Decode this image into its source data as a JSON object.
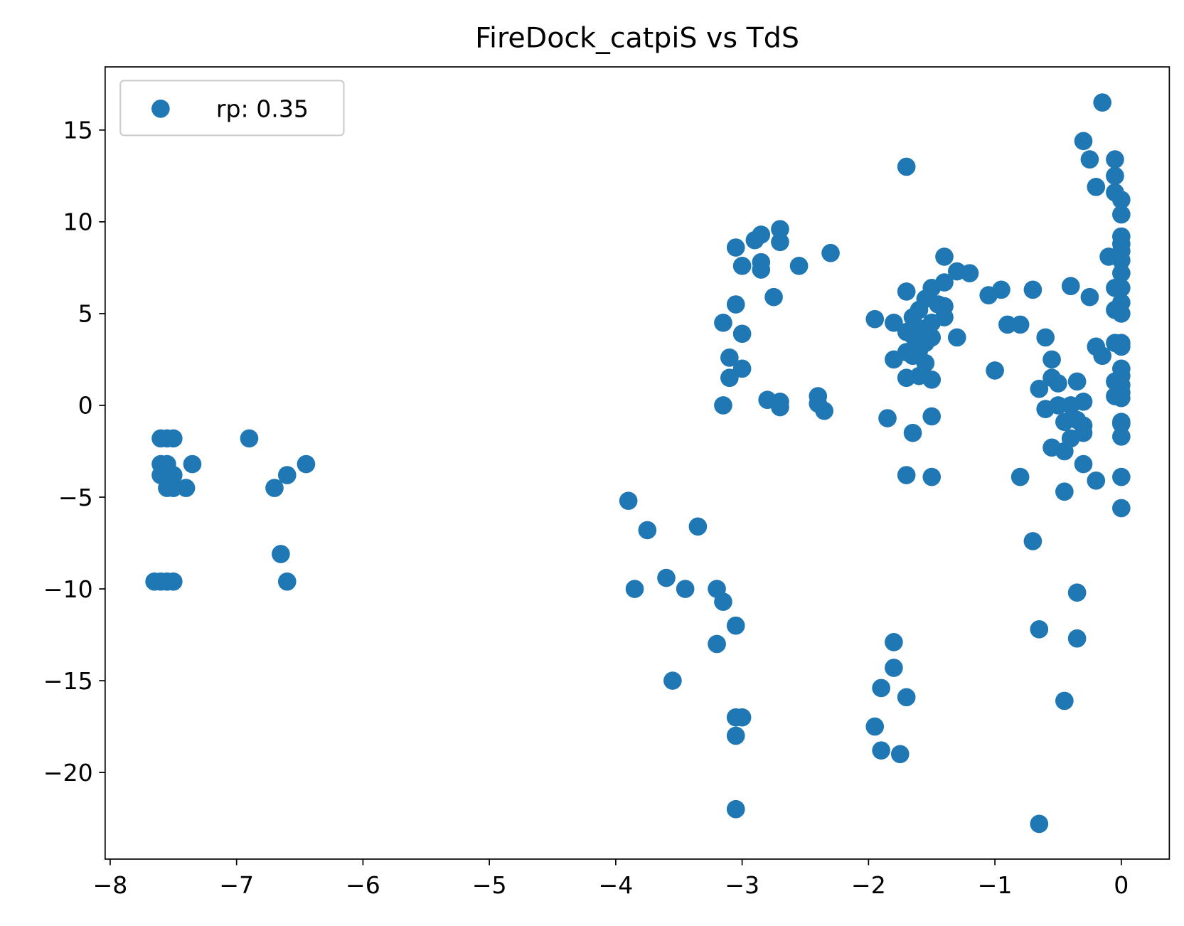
{
  "chart_data": {
    "type": "scatter",
    "title": "FireDock_catpiS vs TdS",
    "series": [
      {
        "name": "rp: 0.35",
        "color": "#1f77b4",
        "x": [
          -7.6,
          -7.55,
          -7.5,
          -7.6,
          -7.55,
          -7.6,
          -7.5,
          -7.55,
          -7.5,
          -7.4,
          -7.35,
          -7.65,
          -7.6,
          -7.55,
          -7.5,
          -6.9,
          -6.7,
          -6.6,
          -6.45,
          -6.65,
          -6.6,
          -3.9,
          -3.75,
          -3.35,
          -3.85,
          -3.6,
          -3.45,
          -3.2,
          -3.15,
          -3.05,
          -3.2,
          -3.55,
          -3.05,
          -3.0,
          -3.05,
          -3.05,
          -3.05,
          -2.9,
          -2.85,
          -2.7,
          -2.7,
          -3.0,
          -2.85,
          -2.85,
          -2.55,
          -2.3,
          -2.75,
          -3.05,
          -3.15,
          -3.0,
          -3.1,
          -3.0,
          -3.1,
          -3.15,
          -2.8,
          -2.7,
          -2.7,
          -2.4,
          -2.4,
          -2.35,
          -1.7,
          -1.95,
          -1.8,
          -1.7,
          -1.6,
          -1.65,
          -1.7,
          -1.65,
          -1.6,
          -1.55,
          -1.5,
          -1.45,
          -1.4,
          -1.4,
          -1.3,
          -1.2,
          -1.4,
          -1.4,
          -1.5,
          -1.5,
          -1.55,
          -1.6,
          -1.7,
          -1.8,
          -1.65,
          -1.55,
          -1.7,
          -1.6,
          -1.5,
          -1.3,
          -1.85,
          -1.65,
          -1.5,
          -1.7,
          -1.5,
          -1.8,
          -1.8,
          -1.9,
          -1.7,
          -1.95,
          -1.9,
          -1.75,
          -1.05,
          -0.95,
          -0.9,
          -0.8,
          -1.0,
          -0.7,
          -0.6,
          -0.55,
          -0.55,
          -0.5,
          -0.65,
          -0.6,
          -0.5,
          -0.4,
          -0.45,
          -0.35,
          -0.3,
          -0.3,
          -0.35,
          -0.3,
          -0.4,
          -0.45,
          -0.55,
          -0.3,
          -0.2,
          -0.45,
          -0.8,
          -0.7,
          -0.65,
          -0.35,
          -0.35,
          -0.45,
          -0.65,
          -0.4,
          -0.25,
          -0.2,
          -0.15,
          -0.15,
          -0.3,
          -0.25,
          -0.2,
          -0.05,
          -0.05,
          -0.05,
          0,
          0,
          0,
          0,
          -0.1,
          0,
          0,
          0,
          -0.05,
          0,
          0,
          -0.05,
          0,
          -0.05,
          0,
          0,
          0,
          0,
          -0.05,
          0,
          -0.05,
          0,
          0,
          0,
          0,
          0,
          0,
          0
        ],
        "values": [
          -1.8,
          -1.8,
          -1.8,
          -3.2,
          -3.2,
          -3.8,
          -3.8,
          -4.5,
          -4.5,
          -4.5,
          -3.2,
          -9.6,
          -9.6,
          -9.6,
          -9.6,
          -1.8,
          -4.5,
          -3.8,
          -3.2,
          -8.1,
          -9.6,
          -5.2,
          -6.8,
          -6.6,
          -10,
          -9.4,
          -10,
          -10,
          -10.7,
          -12,
          -13,
          -15,
          -17,
          -17,
          -18,
          -22,
          8.6,
          9,
          9.3,
          9.6,
          8.9,
          7.6,
          7.8,
          7.4,
          7.6,
          8.3,
          5.9,
          5.5,
          4.5,
          3.9,
          2.6,
          2,
          1.5,
          0,
          0.3,
          0.2,
          -0.1,
          0.5,
          0.1,
          -0.3,
          13,
          4.7,
          4.5,
          6.2,
          5.2,
          4.8,
          4,
          3.8,
          4.2,
          5.8,
          6.4,
          5.5,
          6.7,
          8.1,
          7.3,
          7.2,
          5.4,
          4.8,
          4.5,
          3.7,
          3.4,
          3,
          2.9,
          2.5,
          2.7,
          2.3,
          1.5,
          1.6,
          1.4,
          3.7,
          -0.7,
          -1.5,
          -0.6,
          -3.8,
          -3.9,
          -12.9,
          -14.3,
          -15.4,
          -15.9,
          -17.5,
          -18.8,
          -19,
          6,
          6.3,
          4.4,
          4.4,
          1.9,
          6.3,
          3.7,
          2.5,
          1.5,
          1.2,
          0.9,
          -0.2,
          0,
          0,
          -0.9,
          -0.8,
          -1.1,
          -1.5,
          1.3,
          0.2,
          -1.8,
          -2.5,
          -2.3,
          -3.2,
          -4.1,
          -4.7,
          -3.9,
          -7.4,
          -12.2,
          -10.2,
          -12.7,
          -16.1,
          -22.8,
          6.5,
          5.9,
          3.2,
          2.7,
          16.5,
          14.4,
          13.4,
          11.9,
          13.4,
          12.5,
          11.6,
          11.2,
          10.4,
          9.2,
          8.8,
          8.1,
          8.4,
          7.9,
          7.2,
          6.4,
          6.4,
          5.6,
          5.2,
          5,
          3.4,
          3.4,
          3.2,
          2,
          1.6,
          1.3,
          1.1,
          0.5,
          0.7,
          0.4,
          -0.9,
          -1,
          -1.7,
          -3.9,
          -5.6
        ]
      }
    ],
    "xlim": [
      -8.04,
      0.38
    ],
    "ylim": [
      -24.72,
      18.44
    ],
    "xticks": [
      {
        "value": -8,
        "label": "−8"
      },
      {
        "value": -7,
        "label": "−7"
      },
      {
        "value": -6,
        "label": "−6"
      },
      {
        "value": -5,
        "label": "−5"
      },
      {
        "value": -4,
        "label": "−4"
      },
      {
        "value": -3,
        "label": "−3"
      },
      {
        "value": -2,
        "label": "−2"
      },
      {
        "value": -1,
        "label": "−1"
      },
      0
    ],
    "yticks": [
      {
        "value": -20,
        "label": "−20"
      },
      {
        "value": -15,
        "label": "−15"
      },
      {
        "value": -10,
        "label": "−10"
      },
      {
        "value": -5,
        "label": "−5"
      },
      0,
      5,
      10,
      15
    ],
    "legend": "upper left"
  }
}
